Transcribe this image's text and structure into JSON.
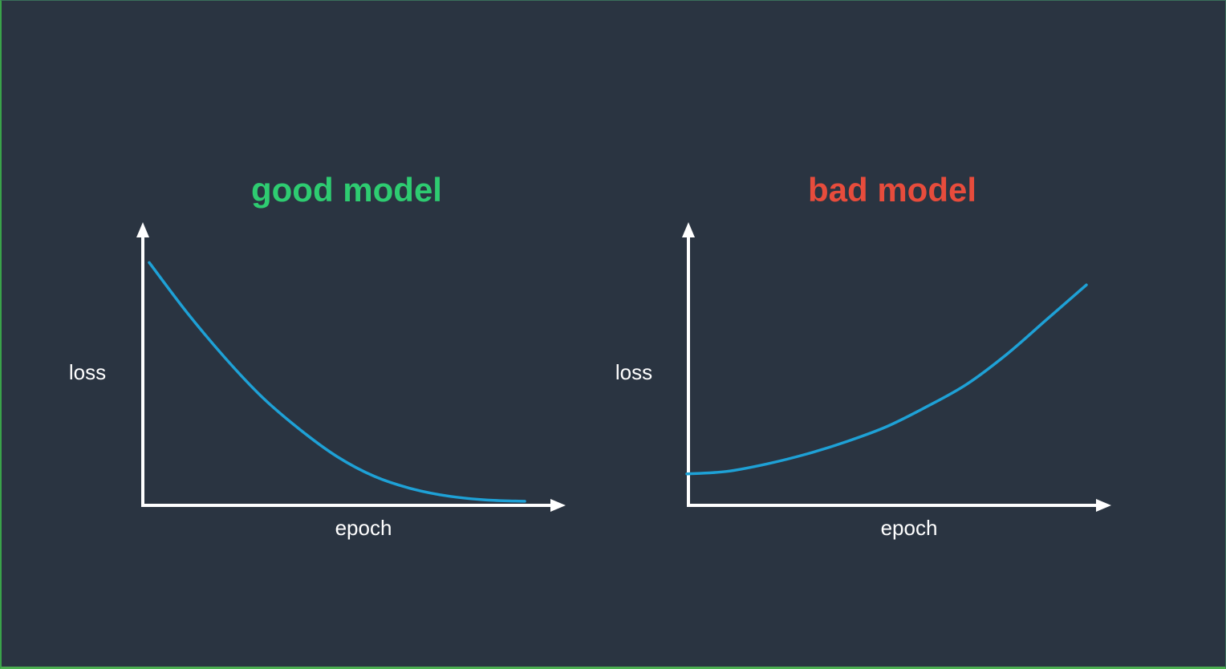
{
  "colors": {
    "background": "#2a3441",
    "axis": "#ffffff",
    "curve": "#1ea1d6",
    "good_title": "#2ecc71",
    "bad_title": "#e74c3c"
  },
  "chart_data": [
    {
      "type": "line",
      "title": "good model",
      "xlabel": "epoch",
      "ylabel": "loss",
      "xlim": [
        0,
        1
      ],
      "ylim": [
        0,
        1
      ],
      "grid": false,
      "series": [
        {
          "x": [
            0.0,
            0.1,
            0.2,
            0.3,
            0.4,
            0.5,
            0.6,
            0.7,
            0.8,
            0.9,
            1.0
          ],
          "values": [
            0.97,
            0.77,
            0.59,
            0.43,
            0.3,
            0.19,
            0.11,
            0.06,
            0.03,
            0.015,
            0.01
          ]
        }
      ]
    },
    {
      "type": "line",
      "title": "bad model",
      "xlabel": "epoch",
      "ylabel": "loss",
      "xlim": [
        0,
        1
      ],
      "ylim": [
        0,
        1
      ],
      "grid": false,
      "series": [
        {
          "x": [
            0.0,
            0.1,
            0.2,
            0.3,
            0.4,
            0.5,
            0.6,
            0.7,
            0.8,
            0.9,
            1.0
          ],
          "values": [
            0.12,
            0.13,
            0.16,
            0.2,
            0.25,
            0.31,
            0.39,
            0.48,
            0.6,
            0.74,
            0.88
          ]
        }
      ]
    }
  ]
}
